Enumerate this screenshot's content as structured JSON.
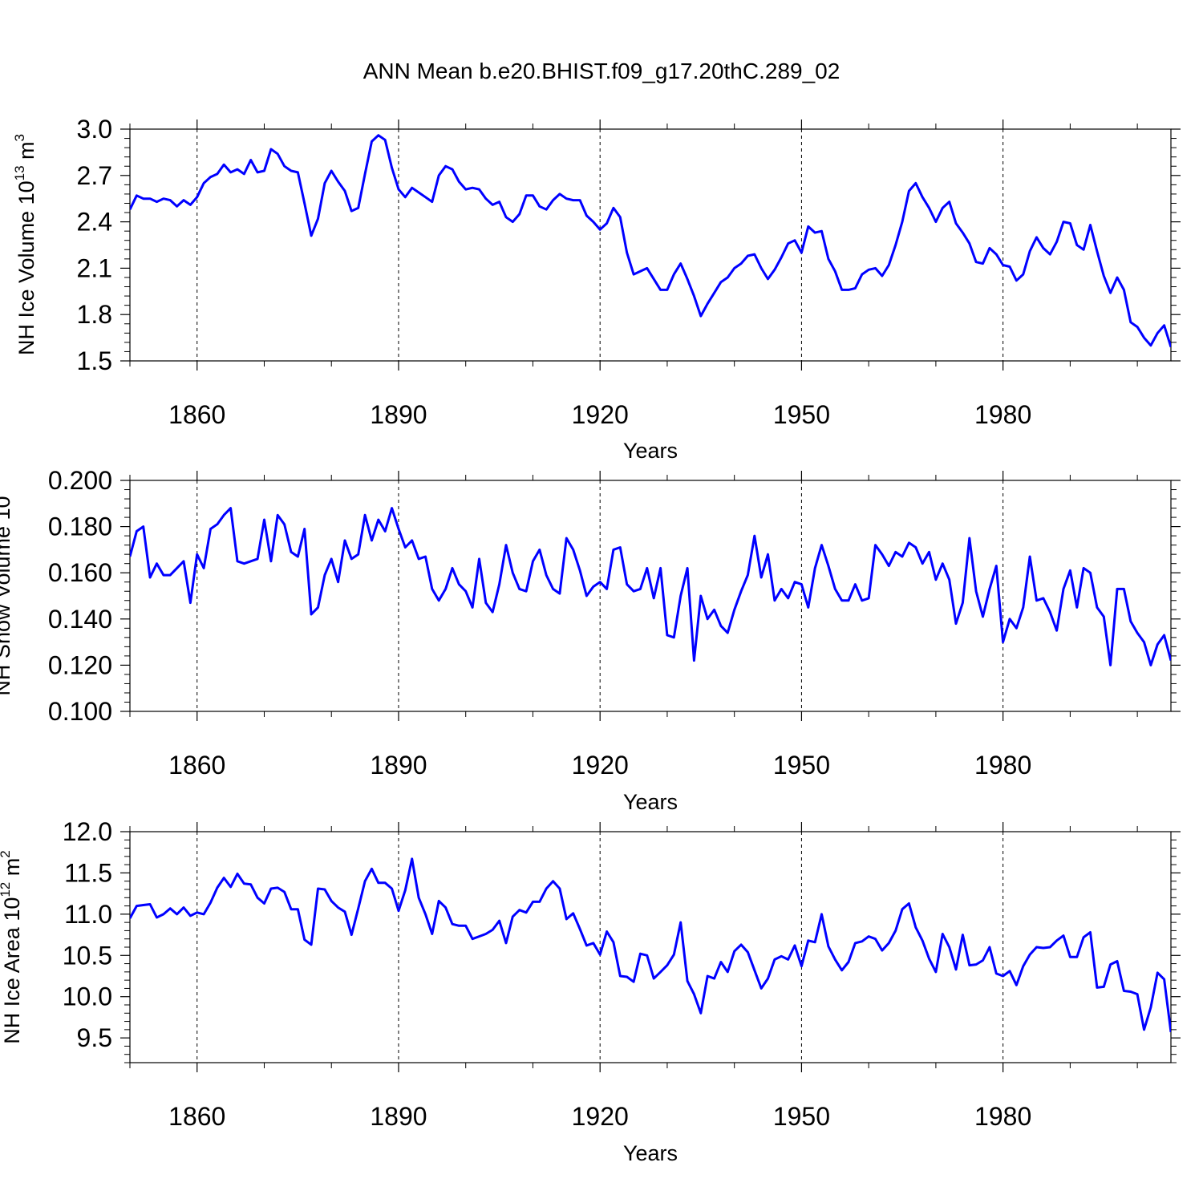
{
  "figure": {
    "title": "ANN Mean b.e20.BHIST.f09_g17.20thC.289_02",
    "line_color": "#0000ff"
  },
  "chart_data": [
    {
      "type": "line",
      "title": "ANN Mean b.e20.BHIST.f09_g17.20thC.289_02",
      "xlabel": "Years",
      "ylabel_base": "NH Ice Volume 10",
      "ylabel_exp": "13",
      "ylabel_unit": " m",
      "ylabel_unit_exp": "3",
      "xlim": [
        1850,
        2005
      ],
      "ylim": [
        1.5,
        3.0
      ],
      "xticks": [
        "1860",
        "1890",
        "1920",
        "1950",
        "1980"
      ],
      "yticks": [
        "1.5",
        "1.8",
        "2.1",
        "2.4",
        "2.7",
        "3.0"
      ],
      "x_start": 1850,
      "series": [
        {
          "values": [
            2.48,
            2.57,
            2.55,
            2.55,
            2.53,
            2.55,
            2.54,
            2.5,
            2.54,
            2.51,
            2.56,
            2.65,
            2.69,
            2.71,
            2.77,
            2.72,
            2.74,
            2.71,
            2.8,
            2.72,
            2.73,
            2.87,
            2.84,
            2.76,
            2.73,
            2.72,
            2.52,
            2.31,
            2.42,
            2.65,
            2.73,
            2.66,
            2.6,
            2.47,
            2.49,
            2.71,
            2.92,
            2.96,
            2.93,
            2.75,
            2.61,
            2.56,
            2.62,
            2.59,
            2.56,
            2.53,
            2.7,
            2.76,
            2.74,
            2.66,
            2.61,
            2.62,
            2.61,
            2.55,
            2.51,
            2.53,
            2.43,
            2.4,
            2.45,
            2.57,
            2.57,
            2.5,
            2.48,
            2.54,
            2.58,
            2.55,
            2.54,
            2.54,
            2.44,
            2.4,
            2.35,
            2.39,
            2.49,
            2.43,
            2.2,
            2.06,
            2.08,
            2.1,
            2.03,
            1.96,
            1.96,
            2.06,
            2.13,
            2.03,
            1.92,
            1.79,
            1.87,
            1.94,
            2.01,
            2.04,
            2.1,
            2.13,
            2.18,
            2.19,
            2.1,
            2.03,
            2.09,
            2.17,
            2.26,
            2.28,
            2.2,
            2.37,
            2.33,
            2.34,
            2.16,
            2.08,
            1.96,
            1.96,
            1.97,
            2.06,
            2.09,
            2.1,
            2.05,
            2.12,
            2.25,
            2.4,
            2.6,
            2.65,
            2.56,
            2.49,
            2.4,
            2.49,
            2.53,
            2.39,
            2.33,
            2.26,
            2.14,
            2.13,
            2.23,
            2.19,
            2.12,
            2.11,
            2.02,
            2.06,
            2.21,
            2.3,
            2.23,
            2.19,
            2.27,
            2.4,
            2.39,
            2.25,
            2.22,
            2.38,
            2.21,
            2.05,
            1.94,
            2.04,
            1.96,
            1.75,
            1.72,
            1.65,
            1.6,
            1.68,
            1.73,
            1.59
          ]
        }
      ]
    },
    {
      "type": "line",
      "xlabel": "Years",
      "ylabel_visible": "NH Snow Volume 10",
      "xlim": [
        1850,
        2005
      ],
      "ylim": [
        0.1,
        0.2
      ],
      "xticks": [
        "1860",
        "1890",
        "1920",
        "1950",
        "1980"
      ],
      "yticks": [
        "0.100",
        "0.120",
        "0.140",
        "0.160",
        "0.180",
        "0.200"
      ],
      "x_start": 1850,
      "series": [
        {
          "values": [
            0.167,
            0.178,
            0.18,
            0.158,
            0.164,
            0.159,
            0.159,
            0.162,
            0.165,
            0.147,
            0.168,
            0.162,
            0.179,
            0.181,
            0.185,
            0.188,
            0.165,
            0.164,
            0.165,
            0.166,
            0.183,
            0.165,
            0.185,
            0.181,
            0.169,
            0.167,
            0.179,
            0.142,
            0.145,
            0.159,
            0.166,
            0.156,
            0.174,
            0.166,
            0.168,
            0.185,
            0.174,
            0.183,
            0.178,
            0.188,
            0.179,
            0.171,
            0.174,
            0.166,
            0.167,
            0.153,
            0.148,
            0.153,
            0.162,
            0.155,
            0.152,
            0.145,
            0.166,
            0.147,
            0.143,
            0.155,
            0.172,
            0.16,
            0.153,
            0.152,
            0.165,
            0.17,
            0.159,
            0.153,
            0.151,
            0.175,
            0.17,
            0.161,
            0.15,
            0.154,
            0.156,
            0.153,
            0.17,
            0.171,
            0.155,
            0.152,
            0.153,
            0.162,
            0.149,
            0.162,
            0.133,
            0.132,
            0.15,
            0.162,
            0.122,
            0.15,
            0.14,
            0.144,
            0.137,
            0.134,
            0.144,
            0.152,
            0.159,
            0.176,
            0.158,
            0.168,
            0.148,
            0.153,
            0.149,
            0.156,
            0.155,
            0.145,
            0.162,
            0.172,
            0.163,
            0.153,
            0.148,
            0.148,
            0.155,
            0.148,
            0.149,
            0.172,
            0.168,
            0.163,
            0.169,
            0.167,
            0.173,
            0.171,
            0.164,
            0.169,
            0.157,
            0.164,
            0.157,
            0.138,
            0.147,
            0.175,
            0.152,
            0.141,
            0.153,
            0.163,
            0.13,
            0.14,
            0.136,
            0.145,
            0.167,
            0.148,
            0.149,
            0.143,
            0.135,
            0.153,
            0.161,
            0.145,
            0.162,
            0.16,
            0.145,
            0.141,
            0.12,
            0.153,
            0.153,
            0.139,
            0.134,
            0.13,
            0.12,
            0.129,
            0.133,
            0.122
          ]
        }
      ]
    },
    {
      "type": "line",
      "xlabel": "Years",
      "ylabel_base": "NH Ice Area 10",
      "ylabel_exp": "12",
      "ylabel_unit": " m",
      "ylabel_unit_exp": "2",
      "xlim": [
        1850,
        2005
      ],
      "ylim": [
        9.2,
        12.0
      ],
      "xticks": [
        "1860",
        "1890",
        "1920",
        "1950",
        "1980"
      ],
      "yticks": [
        "9.5",
        "10.0",
        "10.5",
        "11.0",
        "11.5",
        "12.0"
      ],
      "x_start": 1850,
      "series": [
        {
          "values": [
            10.95,
            11.1,
            11.11,
            11.12,
            10.96,
            11.0,
            11.07,
            11.0,
            11.08,
            10.98,
            11.02,
            11.0,
            11.14,
            11.32,
            11.44,
            11.33,
            11.49,
            11.37,
            11.36,
            11.2,
            11.13,
            11.31,
            11.32,
            11.27,
            11.06,
            11.06,
            10.69,
            10.63,
            11.31,
            11.3,
            11.16,
            11.08,
            11.03,
            10.75,
            11.07,
            11.4,
            11.55,
            11.38,
            11.38,
            11.31,
            11.04,
            11.29,
            11.67,
            11.2,
            11.0,
            10.76,
            11.16,
            11.08,
            10.88,
            10.86,
            10.86,
            10.7,
            10.73,
            10.76,
            10.81,
            10.92,
            10.65,
            10.97,
            11.05,
            11.02,
            11.15,
            11.15,
            11.31,
            11.4,
            11.31,
            10.94,
            11.01,
            10.82,
            10.62,
            10.65,
            10.51,
            10.79,
            10.66,
            10.25,
            10.24,
            10.18,
            10.52,
            10.5,
            10.22,
            10.3,
            10.38,
            10.51,
            10.9,
            10.19,
            10.03,
            9.8,
            10.25,
            10.22,
            10.42,
            10.3,
            10.55,
            10.63,
            10.54,
            10.32,
            10.1,
            10.22,
            10.45,
            10.49,
            10.45,
            10.62,
            10.37,
            10.68,
            10.66,
            11.0,
            10.61,
            10.45,
            10.32,
            10.42,
            10.65,
            10.67,
            10.73,
            10.7,
            10.56,
            10.65,
            10.8,
            11.06,
            11.13,
            10.84,
            10.68,
            10.46,
            10.3,
            10.76,
            10.6,
            10.33,
            10.75,
            10.38,
            10.39,
            10.44,
            10.6,
            10.28,
            10.25,
            10.31,
            10.14,
            10.37,
            10.51,
            10.6,
            10.59,
            10.6,
            10.68,
            10.74,
            10.48,
            10.48,
            10.72,
            10.78,
            10.11,
            10.12,
            10.39,
            10.43,
            10.07,
            10.06,
            10.03,
            9.6,
            9.87,
            10.29,
            10.21,
            9.57
          ]
        }
      ]
    }
  ]
}
